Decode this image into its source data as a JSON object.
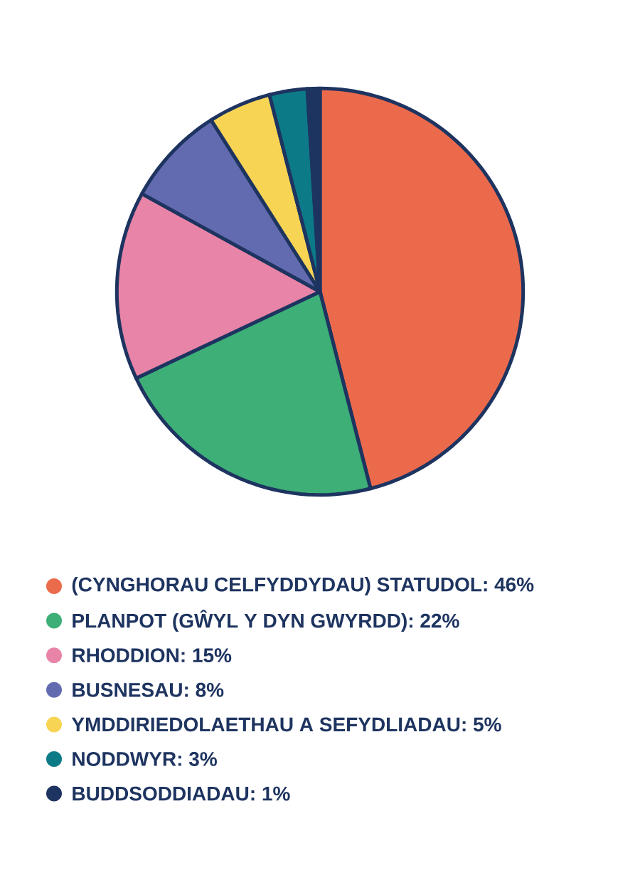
{
  "chart_data": {
    "type": "pie",
    "categories": [
      "(CYNGHORAU CELFYDDYDAU) STATUDOL",
      "PLANPOT (GŴYL Y DYN GWYRDD)",
      "RHODDION",
      "BUSNESAU",
      "YMDDIRIEDOLAETHAU A SEFYDLIADAU",
      "NODDWYR",
      "BUDDSODDIADAU"
    ],
    "values": [
      46,
      22,
      15,
      8,
      5,
      3,
      1
    ],
    "value_labels": [
      ": 46%",
      ": 22%",
      ": 15%",
      ": 8%",
      ": 5%",
      ": 3%",
      ": 1%"
    ],
    "colors": [
      "#ec6a4c",
      "#3daf77",
      "#e884a7",
      "#636bb0",
      "#f8d454",
      "#0c7a87",
      "#1e3460"
    ],
    "legend": "bottom"
  }
}
